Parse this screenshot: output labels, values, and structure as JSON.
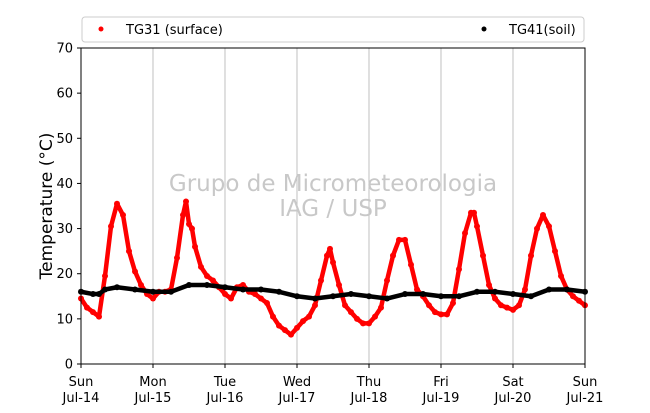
{
  "chart_data": {
    "type": "scatter",
    "title": "",
    "xlabel": "",
    "ylabel": "Temperature (°C)",
    "ylim": [
      0,
      70
    ],
    "y_ticks": [
      0,
      10,
      20,
      30,
      40,
      50,
      60,
      70
    ],
    "xlim": [
      "2013-07-14",
      "2013-07-21"
    ],
    "x_ticks": [
      {
        "day": "Sun",
        "date": "Jul-14"
      },
      {
        "day": "Mon",
        "date": "Jul-15"
      },
      {
        "day": "Tue",
        "date": "Jul-16"
      },
      {
        "day": "Wed",
        "date": "Jul-17"
      },
      {
        "day": "Thu",
        "date": "Jul-18"
      },
      {
        "day": "Fri",
        "date": "Jul-19"
      },
      {
        "day": "Sat",
        "date": "Jul-20"
      },
      {
        "day": "Sun",
        "date": "Jul-21"
      }
    ],
    "grid": "vertical",
    "legend_position": "top",
    "watermark": [
      "Grupo de Micrometeorologia",
      "IAG / USP"
    ],
    "series": [
      {
        "name": "TG31 (surface)",
        "color": "#ff0000",
        "points": [
          [
            "Jul-14 00:00",
            14.5
          ],
          [
            "Jul-14 02:00",
            12.5
          ],
          [
            "Jul-14 04:00",
            11.5
          ],
          [
            "Jul-14 06:00",
            10.5
          ],
          [
            "Jul-14 08:00",
            19.5
          ],
          [
            "Jul-14 10:00",
            30.5
          ],
          [
            "Jul-14 12:00",
            35.5
          ],
          [
            "Jul-14 14:00",
            33.0
          ],
          [
            "Jul-14 16:00",
            25.0
          ],
          [
            "Jul-14 18:00",
            20.5
          ],
          [
            "Jul-14 20:00",
            17.5
          ],
          [
            "Jul-14 22:00",
            15.5
          ],
          [
            "Jul-15 00:00",
            14.5
          ],
          [
            "Jul-15 02:00",
            16.0
          ],
          [
            "Jul-15 04:00",
            16.0
          ],
          [
            "Jul-15 06:00",
            16.5
          ],
          [
            "Jul-15 08:00",
            23.5
          ],
          [
            "Jul-15 10:00",
            33.0
          ],
          [
            "Jul-15 11:00",
            36.0
          ],
          [
            "Jul-15 12:00",
            31.0
          ],
          [
            "Jul-15 13:00",
            30.0
          ],
          [
            "Jul-15 14:00",
            26.0
          ],
          [
            "Jul-15 16:00",
            21.5
          ],
          [
            "Jul-15 18:00",
            19.5
          ],
          [
            "Jul-15 20:00",
            18.5
          ],
          [
            "Jul-15 22:00",
            17.0
          ],
          [
            "Jul-16 00:00",
            15.5
          ],
          [
            "Jul-16 02:00",
            14.5
          ],
          [
            "Jul-16 04:00",
            17.0
          ],
          [
            "Jul-16 06:00",
            17.5
          ],
          [
            "Jul-16 08:00",
            16.0
          ],
          [
            "Jul-16 10:00",
            15.5
          ],
          [
            "Jul-16 12:00",
            14.5
          ],
          [
            "Jul-16 14:00",
            13.5
          ],
          [
            "Jul-16 16:00",
            10.5
          ],
          [
            "Jul-16 18:00",
            8.5
          ],
          [
            "Jul-16 20:00",
            7.5
          ],
          [
            "Jul-16 22:00",
            6.5
          ],
          [
            "Jul-17 00:00",
            8.0
          ],
          [
            "Jul-17 02:00",
            9.5
          ],
          [
            "Jul-17 04:00",
            10.5
          ],
          [
            "Jul-17 06:00",
            13.0
          ],
          [
            "Jul-17 08:00",
            18.5
          ],
          [
            "Jul-17 10:00",
            24.0
          ],
          [
            "Jul-17 11:00",
            25.5
          ],
          [
            "Jul-17 12:00",
            22.5
          ],
          [
            "Jul-17 14:00",
            17.5
          ],
          [
            "Jul-17 16:00",
            13.0
          ],
          [
            "Jul-17 18:00",
            11.5
          ],
          [
            "Jul-17 20:00",
            10.0
          ],
          [
            "Jul-17 22:00",
            9.0
          ],
          [
            "Jul-18 00:00",
            9.0
          ],
          [
            "Jul-18 02:00",
            10.5
          ],
          [
            "Jul-18 04:00",
            12.5
          ],
          [
            "Jul-18 06:00",
            18.5
          ],
          [
            "Jul-18 08:00",
            24.0
          ],
          [
            "Jul-18 10:00",
            27.5
          ],
          [
            "Jul-18 12:00",
            27.5
          ],
          [
            "Jul-18 14:00",
            22.0
          ],
          [
            "Jul-18 16:00",
            16.5
          ],
          [
            "Jul-18 18:00",
            15.0
          ],
          [
            "Jul-18 20:00",
            13.0
          ],
          [
            "Jul-18 22:00",
            11.5
          ],
          [
            "Jul-19 00:00",
            11.0
          ],
          [
            "Jul-19 02:00",
            11.0
          ],
          [
            "Jul-19 04:00",
            13.5
          ],
          [
            "Jul-19 06:00",
            21.0
          ],
          [
            "Jul-19 08:00",
            29.0
          ],
          [
            "Jul-19 10:00",
            33.5
          ],
          [
            "Jul-19 11:00",
            33.5
          ],
          [
            "Jul-19 12:00",
            30.5
          ],
          [
            "Jul-19 14:00",
            24.0
          ],
          [
            "Jul-19 16:00",
            17.5
          ],
          [
            "Jul-19 18:00",
            14.5
          ],
          [
            "Jul-19 20:00",
            13.0
          ],
          [
            "Jul-19 22:00",
            12.5
          ],
          [
            "Jul-20 00:00",
            12.0
          ],
          [
            "Jul-20 02:00",
            13.0
          ],
          [
            "Jul-20 04:00",
            16.5
          ],
          [
            "Jul-20 06:00",
            24.0
          ],
          [
            "Jul-20 08:00",
            30.0
          ],
          [
            "Jul-20 10:00",
            33.0
          ],
          [
            "Jul-20 12:00",
            30.5
          ],
          [
            "Jul-20 14:00",
            25.0
          ],
          [
            "Jul-20 16:00",
            19.5
          ],
          [
            "Jul-20 18:00",
            16.5
          ],
          [
            "Jul-20 20:00",
            15.0
          ],
          [
            "Jul-20 22:00",
            14.0
          ],
          [
            "Jul-21 00:00",
            13.0
          ]
        ]
      },
      {
        "name": "TG41(soil)",
        "color": "#000000",
        "points": [
          [
            "Jul-14 00:00",
            16.0
          ],
          [
            "Jul-14 04:00",
            15.5
          ],
          [
            "Jul-14 06:00",
            15.5
          ],
          [
            "Jul-14 08:00",
            16.5
          ],
          [
            "Jul-14 12:00",
            17.0
          ],
          [
            "Jul-14 18:00",
            16.5
          ],
          [
            "Jul-15 00:00",
            16.0
          ],
          [
            "Jul-15 06:00",
            16.0
          ],
          [
            "Jul-15 12:00",
            17.5
          ],
          [
            "Jul-15 18:00",
            17.5
          ],
          [
            "Jul-16 00:00",
            17.0
          ],
          [
            "Jul-16 06:00",
            16.5
          ],
          [
            "Jul-16 12:00",
            16.5
          ],
          [
            "Jul-16 18:00",
            16.0
          ],
          [
            "Jul-17 00:00",
            15.0
          ],
          [
            "Jul-17 06:00",
            14.5
          ],
          [
            "Jul-17 12:00",
            15.0
          ],
          [
            "Jul-17 18:00",
            15.5
          ],
          [
            "Jul-18 00:00",
            15.0
          ],
          [
            "Jul-18 06:00",
            14.5
          ],
          [
            "Jul-18 12:00",
            15.5
          ],
          [
            "Jul-18 18:00",
            15.5
          ],
          [
            "Jul-19 00:00",
            15.0
          ],
          [
            "Jul-19 06:00",
            15.0
          ],
          [
            "Jul-19 12:00",
            16.0
          ],
          [
            "Jul-19 18:00",
            16.0
          ],
          [
            "Jul-20 00:00",
            15.5
          ],
          [
            "Jul-20 06:00",
            15.0
          ],
          [
            "Jul-20 12:00",
            16.5
          ],
          [
            "Jul-20 18:00",
            16.5
          ],
          [
            "Jul-21 00:00",
            16.0
          ]
        ]
      }
    ]
  }
}
